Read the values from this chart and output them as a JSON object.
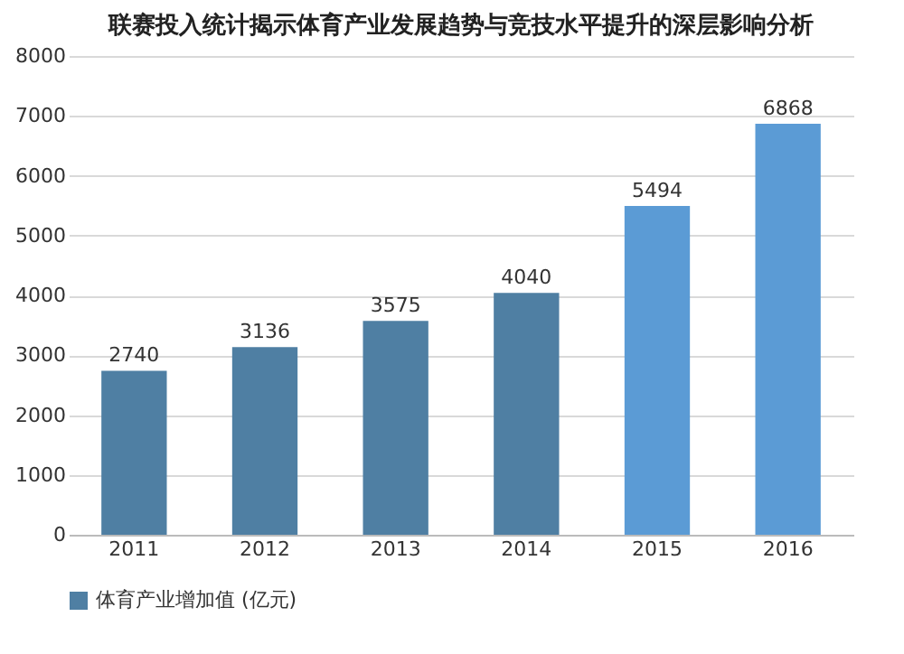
{
  "chart_data": {
    "type": "bar",
    "title": "联赛投入统计揭示体育产业发展趋势与竞技水平提升的深层影响分析",
    "categories": [
      "2011",
      "2012",
      "2013",
      "2014",
      "2015",
      "2016"
    ],
    "series": [
      {
        "name": "体育产业增加值 (亿元)",
        "colors": [
          "#4f7fa3",
          "#4f7fa3",
          "#4f7fa3",
          "#4f7fa3",
          "#5b9bd5",
          "#5b9bd5"
        ],
        "values": [
          2740,
          3136,
          3575,
          4040,
          5494,
          6868
        ]
      }
    ],
    "ylim": [
      0,
      8000
    ],
    "yticks": [
      0,
      1000,
      2000,
      3000,
      4000,
      5000,
      6000,
      7000,
      8000
    ],
    "grid": "y",
    "legend": "bottom",
    "data_labels": true
  }
}
